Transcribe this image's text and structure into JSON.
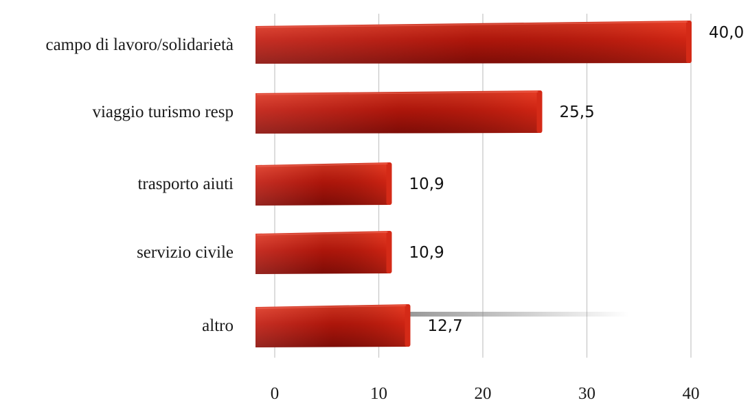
{
  "chart_data": {
    "type": "bar",
    "orientation": "horizontal",
    "categories": [
      "campo di lavoro/solidarietà",
      "viaggio turismo resp",
      "trasporto aiuti",
      "servizio civile",
      "altro"
    ],
    "values": [
      40.0,
      25.5,
      10.9,
      10.9,
      12.7
    ],
    "value_labels": [
      "40,0",
      "25,5",
      "10,9",
      "10,9",
      "12,7"
    ],
    "x_ticks": [
      0,
      10,
      20,
      30,
      40
    ],
    "x_tick_labels": [
      "0",
      "10",
      "20",
      "30",
      "40"
    ],
    "xlim": [
      0,
      40
    ],
    "grid": true,
    "bar_color": "#c0180c",
    "bar_color_dark": "#8e0f08",
    "bar_color_light": "#e8321f"
  }
}
